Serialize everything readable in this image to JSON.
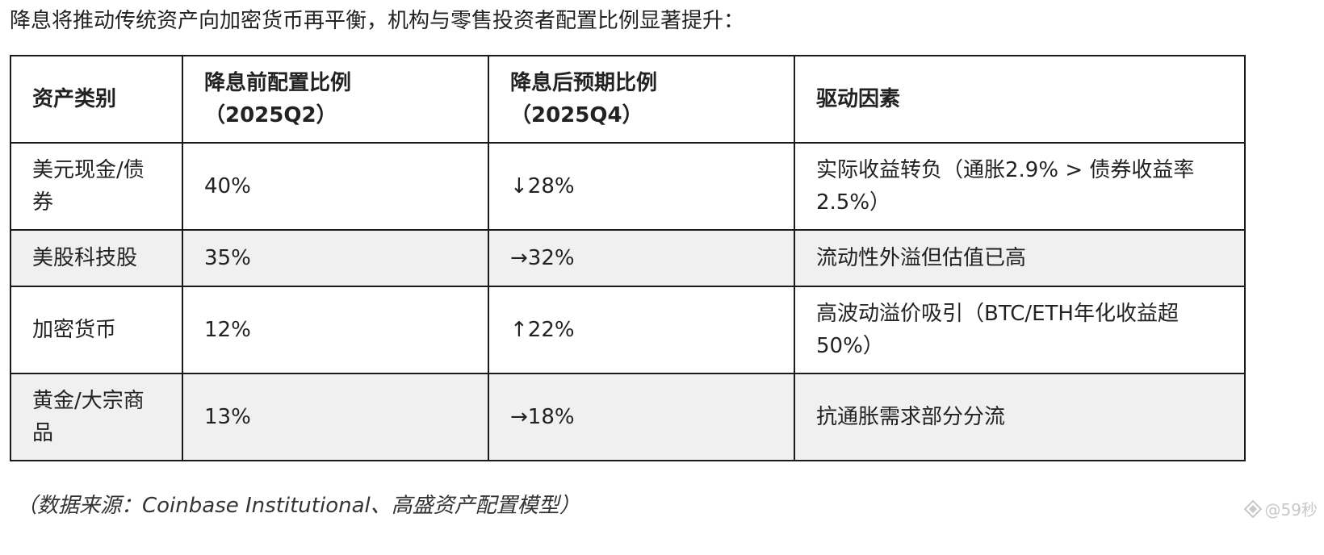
{
  "intro": "降息将推动传统资产向加密货币再平衡，机构与零售投资者配置比例显著提升：",
  "table": {
    "headers": [
      "资产类别",
      "降息前配置比例（2025Q2）",
      "降息后预期比例（2025Q4）",
      "驱动因素"
    ],
    "rows": [
      {
        "category": "美元现金/债券",
        "before": "40%",
        "after": "↓28%",
        "driver": "实际收益转负（通胀2.9% > 债券收益率2.5%）"
      },
      {
        "category": "美股科技股",
        "before": "35%",
        "after": "→32%",
        "driver": "流动性外溢但估值已高"
      },
      {
        "category": "加密货币",
        "before": "12%",
        "after": "↑22%",
        "driver": "高波动溢价吸引（BTC/ETH年化收益超50%）"
      },
      {
        "category": "黄金/大宗商品",
        "before": "13%",
        "after": "→18%",
        "driver": "抗通胀需求部分分流"
      }
    ]
  },
  "source": "（数据来源：Coinbase Institutional、高盛资产配置模型）",
  "watermark": "@59秒"
}
